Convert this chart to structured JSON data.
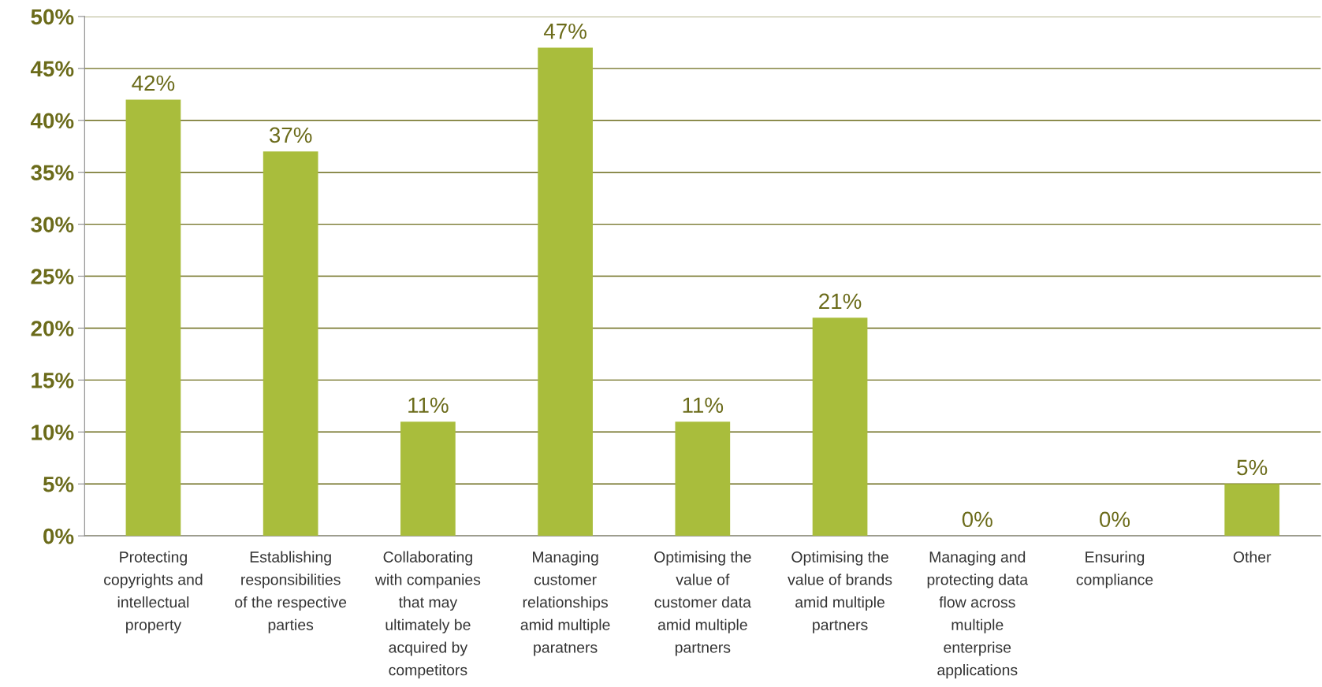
{
  "chart_data": {
    "type": "bar",
    "categories": [
      "Protecting\ncopyrights and\nintellectual\nproperty",
      "Establishing\nresponsibilities\nof the respective\nparties",
      "Collaborating\nwith companies\nthat may\nultimately be\nacquired by\ncompetitors",
      "Managing\ncustomer\nrelationships\namid multiple\nparatners",
      "Optimising the\nvalue of\ncustomer data\namid multiple\npartners",
      "Optimising the\nvalue of brands\namid multiple\npartners",
      "Managing and\nprotecting data\nflow across\nmultiple\nenterprise\napplications",
      "Ensuring\ncompliance",
      "Other"
    ],
    "values": [
      42,
      37,
      11,
      47,
      11,
      21,
      0,
      0,
      5
    ],
    "value_labels": [
      "42%",
      "37%",
      "11%",
      "47%",
      "11%",
      "21%",
      "0%",
      "0%",
      "5%"
    ],
    "color": "#a9bd3c",
    "ylim": [
      0,
      50
    ],
    "yticks": [
      {
        "value": 0,
        "label": "0%"
      },
      {
        "value": 5,
        "label": "5%"
      },
      {
        "value": 10,
        "label": "10%"
      },
      {
        "value": 15,
        "label": "15%"
      },
      {
        "value": 20,
        "label": "20%"
      },
      {
        "value": 25,
        "label": "25%"
      },
      {
        "value": 30,
        "label": "30%"
      },
      {
        "value": 35,
        "label": "35%"
      },
      {
        "value": 40,
        "label": "40%"
      },
      {
        "value": 45,
        "label": "45%"
      },
      {
        "value": 50,
        "label": "50%"
      }
    ],
    "grid": "y"
  }
}
